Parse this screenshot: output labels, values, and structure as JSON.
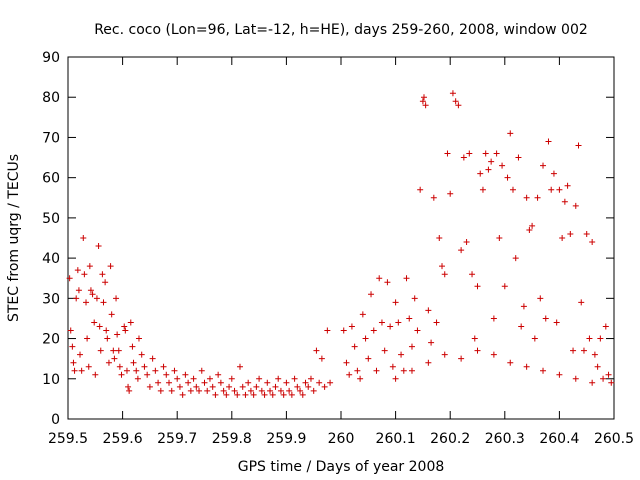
{
  "chart_data": {
    "type": "scatter",
    "title": "Rec. coco (Lon=96, Lat=-12, h=HE), days 259-260, 2008, window 002",
    "xlabel": "GPS time / Days of year 2008",
    "ylabel": "STEC from uqrg / TECUs",
    "xlim": [
      259.5,
      260.5
    ],
    "ylim": [
      0,
      90
    ],
    "x_ticks": [
      259.5,
      259.6,
      259.7,
      259.8,
      259.9,
      260,
      260.1,
      260.2,
      260.3,
      260.4,
      260.5
    ],
    "x_tick_labels": [
      "259.5",
      "259.6",
      "259.7",
      "259.8",
      "259.9",
      "260",
      "260.1",
      "260.2",
      "260.3",
      "260.4",
      "260.5"
    ],
    "y_ticks": [
      0,
      10,
      20,
      30,
      40,
      50,
      60,
      70,
      80,
      90
    ],
    "y_tick_labels": [
      "0",
      "10",
      "20",
      "30",
      "40",
      "50",
      "60",
      "70",
      "80",
      "90"
    ],
    "grid": false,
    "legend": "none",
    "marker": "plus",
    "color": "#cc0000",
    "series": [
      {
        "points": [
          [
            259.503,
            35
          ],
          [
            259.505,
            22
          ],
          [
            259.508,
            18
          ],
          [
            259.51,
            14
          ],
          [
            259.512,
            12
          ],
          [
            259.515,
            30
          ],
          [
            259.518,
            37
          ],
          [
            259.52,
            32
          ],
          [
            259.522,
            16
          ],
          [
            259.525,
            12
          ],
          [
            259.528,
            45
          ],
          [
            259.53,
            36
          ],
          [
            259.533,
            29
          ],
          [
            259.535,
            20
          ],
          [
            259.538,
            13
          ],
          [
            259.54,
            38
          ],
          [
            259.542,
            32
          ],
          [
            259.545,
            31
          ],
          [
            259.548,
            24
          ],
          [
            259.55,
            11
          ],
          [
            259.553,
            30
          ],
          [
            259.556,
            43
          ],
          [
            259.558,
            23
          ],
          [
            259.56,
            17
          ],
          [
            259.563,
            36
          ],
          [
            259.565,
            29
          ],
          [
            259.568,
            34
          ],
          [
            259.57,
            22
          ],
          [
            259.572,
            20
          ],
          [
            259.575,
            14
          ],
          [
            259.578,
            38
          ],
          [
            259.58,
            26
          ],
          [
            259.583,
            17
          ],
          [
            259.585,
            15
          ],
          [
            259.588,
            30
          ],
          [
            259.59,
            21
          ],
          [
            259.593,
            17
          ],
          [
            259.595,
            13
          ],
          [
            259.598,
            11
          ],
          [
            259.603,
            23
          ],
          [
            259.605,
            22
          ],
          [
            259.608,
            12
          ],
          [
            259.61,
            8
          ],
          [
            259.612,
            7
          ],
          [
            259.615,
            24
          ],
          [
            259.618,
            18
          ],
          [
            259.62,
            14
          ],
          [
            259.625,
            12
          ],
          [
            259.628,
            10
          ],
          [
            259.63,
            20
          ],
          [
            259.635,
            16
          ],
          [
            259.64,
            13
          ],
          [
            259.645,
            11
          ],
          [
            259.65,
            8
          ],
          [
            259.655,
            15
          ],
          [
            259.66,
            12
          ],
          [
            259.665,
            9
          ],
          [
            259.67,
            7
          ],
          [
            259.675,
            13
          ],
          [
            259.68,
            11
          ],
          [
            259.685,
            9
          ],
          [
            259.69,
            7
          ],
          [
            259.695,
            12
          ],
          [
            259.7,
            10
          ],
          [
            259.705,
            8
          ],
          [
            259.71,
            6
          ],
          [
            259.715,
            11
          ],
          [
            259.72,
            9
          ],
          [
            259.725,
            7
          ],
          [
            259.73,
            10
          ],
          [
            259.735,
            8
          ],
          [
            259.74,
            7
          ],
          [
            259.745,
            12
          ],
          [
            259.75,
            9
          ],
          [
            259.755,
            7
          ],
          [
            259.76,
            10
          ],
          [
            259.765,
            8
          ],
          [
            259.77,
            6
          ],
          [
            259.775,
            11
          ],
          [
            259.78,
            9
          ],
          [
            259.785,
            7
          ],
          [
            259.79,
            6
          ],
          [
            259.795,
            8
          ],
          [
            259.8,
            10
          ],
          [
            259.805,
            7
          ],
          [
            259.81,
            6
          ],
          [
            259.815,
            13
          ],
          [
            259.82,
            8
          ],
          [
            259.825,
            6
          ],
          [
            259.83,
            9
          ],
          [
            259.835,
            7
          ],
          [
            259.84,
            6
          ],
          [
            259.845,
            8
          ],
          [
            259.85,
            10
          ],
          [
            259.855,
            7
          ],
          [
            259.86,
            6
          ],
          [
            259.865,
            9
          ],
          [
            259.87,
            7
          ],
          [
            259.875,
            6
          ],
          [
            259.88,
            8
          ],
          [
            259.885,
            10
          ],
          [
            259.89,
            7
          ],
          [
            259.895,
            6
          ],
          [
            259.9,
            9
          ],
          [
            259.905,
            7
          ],
          [
            259.91,
            6
          ],
          [
            259.915,
            10
          ],
          [
            259.92,
            8
          ],
          [
            259.925,
            7
          ],
          [
            259.93,
            6
          ],
          [
            259.935,
            9
          ],
          [
            259.94,
            8
          ],
          [
            259.945,
            10
          ],
          [
            259.95,
            7
          ],
          [
            259.955,
            17
          ],
          [
            259.96,
            9
          ],
          [
            259.965,
            15
          ],
          [
            259.97,
            8
          ],
          [
            259.975,
            22
          ],
          [
            259.98,
            9
          ],
          [
            260.005,
            22
          ],
          [
            260.01,
            14
          ],
          [
            260.015,
            11
          ],
          [
            260.02,
            23
          ],
          [
            260.025,
            18
          ],
          [
            260.03,
            12
          ],
          [
            260.035,
            10
          ],
          [
            260.04,
            26
          ],
          [
            260.045,
            20
          ],
          [
            260.05,
            15
          ],
          [
            260.055,
            31
          ],
          [
            260.06,
            22
          ],
          [
            260.065,
            12
          ],
          [
            260.07,
            35
          ],
          [
            260.075,
            24
          ],
          [
            260.08,
            17
          ],
          [
            260.085,
            34
          ],
          [
            260.09,
            23
          ],
          [
            260.095,
            13
          ],
          [
            260.1,
            29
          ],
          [
            260.105,
            24
          ],
          [
            260.11,
            16
          ],
          [
            260.115,
            12
          ],
          [
            260.12,
            35
          ],
          [
            260.125,
            25
          ],
          [
            260.13,
            18
          ],
          [
            260.135,
            30
          ],
          [
            260.14,
            22
          ],
          [
            260.145,
            57
          ],
          [
            260.15,
            79
          ],
          [
            260.152,
            80
          ],
          [
            260.155,
            78
          ],
          [
            260.16,
            27
          ],
          [
            260.165,
            19
          ],
          [
            260.17,
            55
          ],
          [
            260.175,
            24
          ],
          [
            260.18,
            45
          ],
          [
            260.185,
            38
          ],
          [
            260.19,
            36
          ],
          [
            260.195,
            66
          ],
          [
            260.2,
            56
          ],
          [
            260.205,
            81
          ],
          [
            260.21,
            79
          ],
          [
            260.215,
            78
          ],
          [
            260.22,
            42
          ],
          [
            260.225,
            65
          ],
          [
            260.23,
            44
          ],
          [
            260.235,
            66
          ],
          [
            260.24,
            36
          ],
          [
            260.245,
            20
          ],
          [
            260.25,
            33
          ],
          [
            260.255,
            61
          ],
          [
            260.26,
            57
          ],
          [
            260.265,
            66
          ],
          [
            260.27,
            62
          ],
          [
            260.275,
            64
          ],
          [
            260.28,
            25
          ],
          [
            260.285,
            66
          ],
          [
            260.29,
            45
          ],
          [
            260.295,
            63
          ],
          [
            260.3,
            33
          ],
          [
            260.305,
            60
          ],
          [
            260.31,
            71
          ],
          [
            260.315,
            57
          ],
          [
            260.32,
            40
          ],
          [
            260.325,
            65
          ],
          [
            260.33,
            23
          ],
          [
            260.335,
            28
          ],
          [
            260.34,
            55
          ],
          [
            260.345,
            47
          ],
          [
            260.35,
            48
          ],
          [
            260.355,
            20
          ],
          [
            260.36,
            55
          ],
          [
            260.365,
            30
          ],
          [
            260.37,
            63
          ],
          [
            260.375,
            25
          ],
          [
            260.38,
            69
          ],
          [
            260.385,
            57
          ],
          [
            260.39,
            61
          ],
          [
            260.395,
            24
          ],
          [
            260.4,
            57
          ],
          [
            260.405,
            45
          ],
          [
            260.41,
            54
          ],
          [
            260.415,
            58
          ],
          [
            260.42,
            46
          ],
          [
            260.425,
            17
          ],
          [
            260.43,
            53
          ],
          [
            260.435,
            68
          ],
          [
            260.44,
            29
          ],
          [
            260.445,
            17
          ],
          [
            260.45,
            46
          ],
          [
            260.455,
            20
          ],
          [
            260.46,
            44
          ],
          [
            260.465,
            16
          ],
          [
            260.47,
            13
          ],
          [
            260.475,
            20
          ],
          [
            260.48,
            10
          ],
          [
            260.485,
            23
          ],
          [
            260.49,
            11
          ],
          [
            260.495,
            9
          ],
          [
            260.1,
            10
          ],
          [
            260.13,
            12
          ],
          [
            260.16,
            14
          ],
          [
            260.19,
            16
          ],
          [
            260.22,
            15
          ],
          [
            260.25,
            17
          ],
          [
            260.28,
            16
          ],
          [
            260.31,
            14
          ],
          [
            260.34,
            13
          ],
          [
            260.37,
            12
          ],
          [
            260.4,
            11
          ],
          [
            260.43,
            10
          ],
          [
            260.46,
            9
          ]
        ]
      }
    ]
  }
}
